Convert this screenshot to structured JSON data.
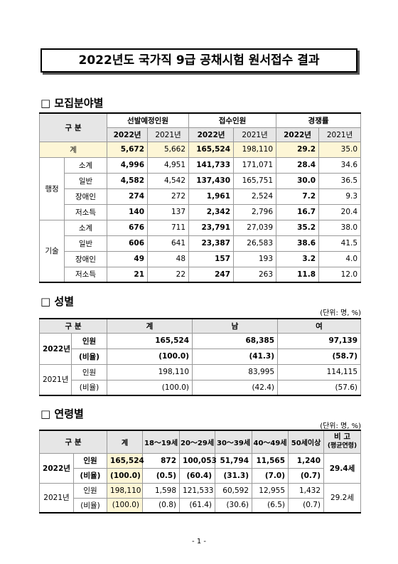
{
  "title": "2022년도 국가직 9급 공채시험 원서접수 결과",
  "section1": {
    "heading": "□ 모집분야별",
    "table": {
      "header": {
        "label": "구 분",
        "groups": [
          "선발예정인원",
          "접수인원",
          "경쟁률"
        ],
        "years": [
          "2022년",
          "2021년",
          "2022년",
          "2021년",
          "2022년",
          "2021년"
        ]
      },
      "total": {
        "label": "계",
        "cells": [
          "5,672",
          "5,662",
          "165,524",
          "198,110",
          "29.2",
          "35.0"
        ]
      },
      "groups": [
        {
          "name": "행정",
          "rows": [
            {
              "label": "소계",
              "cells": [
                "4,996",
                "4,951",
                "141,733",
                "171,071",
                "28.4",
                "34.6"
              ]
            },
            {
              "label": "일반",
              "cells": [
                "4,582",
                "4,542",
                "137,430",
                "165,751",
                "30.0",
                "36.5"
              ]
            },
            {
              "label": "장애인",
              "cells": [
                "274",
                "272",
                "1,961",
                "2,524",
                "7.2",
                "9.3"
              ]
            },
            {
              "label": "저소득",
              "cells": [
                "140",
                "137",
                "2,342",
                "2,796",
                "16.7",
                "20.4"
              ]
            }
          ]
        },
        {
          "name": "기술",
          "rows": [
            {
              "label": "소계",
              "cells": [
                "676",
                "711",
                "23,791",
                "27,039",
                "35.2",
                "38.0"
              ]
            },
            {
              "label": "일반",
              "cells": [
                "606",
                "641",
                "23,387",
                "26,583",
                "38.6",
                "41.5"
              ]
            },
            {
              "label": "장애인",
              "cells": [
                "49",
                "48",
                "157",
                "193",
                "3.2",
                "4.0"
              ]
            },
            {
              "label": "저소득",
              "cells": [
                "21",
                "22",
                "247",
                "263",
                "11.8",
                "12.0"
              ]
            }
          ]
        }
      ]
    }
  },
  "section2": {
    "heading": "□ 성별",
    "unit": "(단위: 명, %)",
    "table": {
      "header": [
        "구 분",
        "계",
        "남",
        "여"
      ],
      "years": [
        {
          "year": "2022년",
          "rows": [
            {
              "label": "인원",
              "cells": [
                "165,524",
                "68,385",
                "97,139"
              ]
            },
            {
              "label": "(비율)",
              "cells": [
                "(100.0)",
                "(41.3)",
                "(58.7)"
              ]
            }
          ]
        },
        {
          "year": "2021년",
          "rows": [
            {
              "label": "인원",
              "cells": [
                "198,110",
                "83,995",
                "114,115"
              ]
            },
            {
              "label": "(비율)",
              "cells": [
                "(100.0)",
                "(42.4)",
                "(57.6)"
              ]
            }
          ]
        }
      ]
    }
  },
  "section3": {
    "heading": "□ 연령별",
    "unit": "(단위: 명, %)",
    "table": {
      "header": [
        "구 분",
        "계",
        "18～19세",
        "20～29세",
        "30～39세",
        "40～49세",
        "50세이상"
      ],
      "note_header": [
        "비 고",
        "(평균연령)"
      ],
      "years": [
        {
          "year": "2022년",
          "note": "29.4세",
          "rows": [
            {
              "label": "인원",
              "cells": [
                "165,524",
                "872",
                "100,053",
                "51,794",
                "11,565",
                "1,240"
              ]
            },
            {
              "label": "(비율)",
              "cells": [
                "(100.0)",
                "(0.5)",
                "(60.4)",
                "(31.3)",
                "(7.0)",
                "(0.7)"
              ]
            }
          ]
        },
        {
          "year": "2021년",
          "note": "29.2세",
          "rows": [
            {
              "label": "인원",
              "cells": [
                "198,110",
                "1,598",
                "121,533",
                "60,592",
                "12,955",
                "1,432"
              ]
            },
            {
              "label": "(비율)",
              "cells": [
                "(100.0)",
                "(0.8)",
                "(61.4)",
                "(30.6)",
                "(6.5)",
                "(0.7)"
              ]
            }
          ]
        }
      ]
    }
  },
  "page_number": "- 1 -"
}
